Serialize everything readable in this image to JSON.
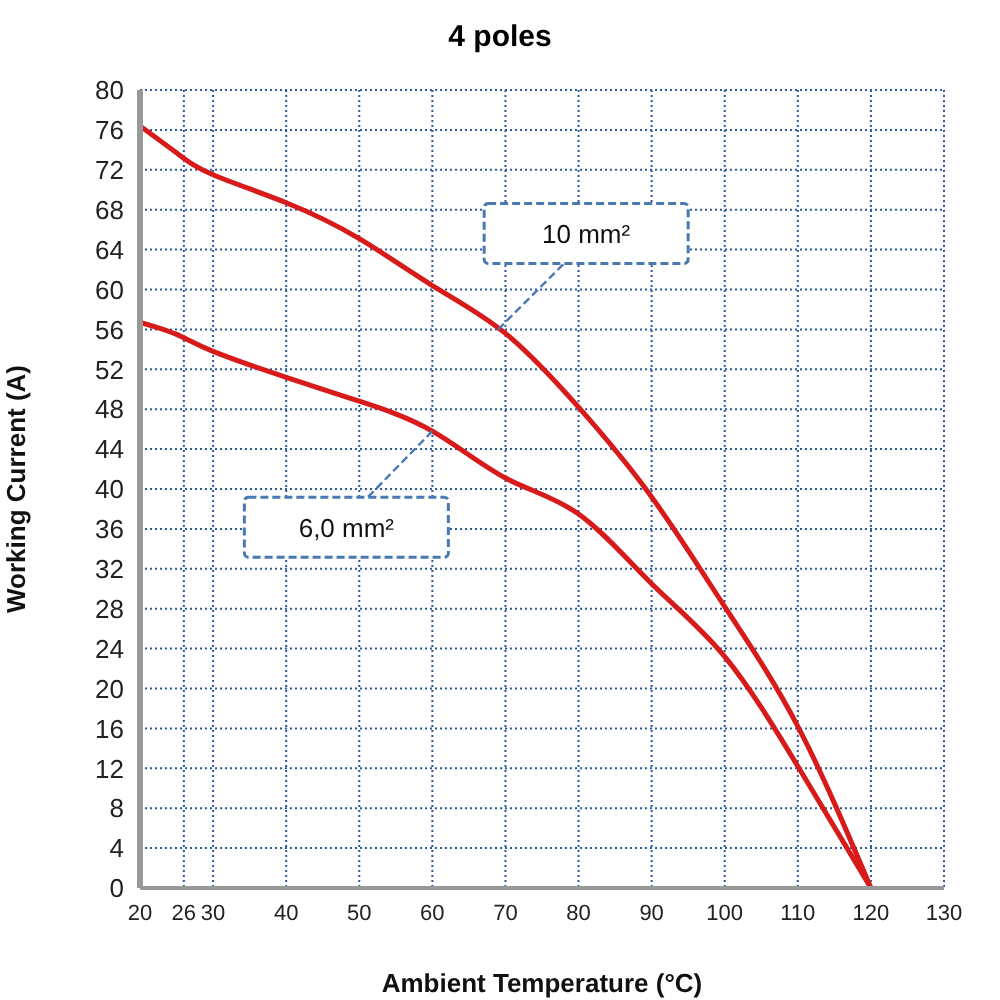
{
  "chart_data": {
    "type": "line",
    "title": "4 poles",
    "xlabel": "Ambient Temperature (°C)",
    "ylabel": "Working Current (A)",
    "x": [
      20,
      25,
      30,
      40,
      50,
      60,
      70,
      80,
      90,
      100,
      110,
      120
    ],
    "series": [
      {
        "color": "#d71a1a",
        "values": [
          76.4,
          73.7,
          71.5,
          68.7,
          65.1,
          60.4,
          55.6,
          48.2,
          39.2,
          28.2,
          16.2,
          0
        ]
      },
      {
        "color": "#d71a1a",
        "values": [
          56.7,
          55.5,
          53.8,
          51.2,
          48.8,
          45.8,
          41.1,
          37.5,
          30.5,
          23.2,
          12.2,
          0
        ]
      }
    ],
    "xlim": [
      20,
      130
    ],
    "xticks": [
      20,
      26,
      30,
      40,
      50,
      60,
      70,
      80,
      90,
      100,
      110,
      120,
      130
    ],
    "ylim": [
      0,
      80
    ],
    "yticks": [
      0,
      4,
      8,
      12,
      16,
      20,
      24,
      28,
      32,
      36,
      40,
      44,
      48,
      52,
      56,
      60,
      64,
      68,
      72,
      76,
      80
    ],
    "grid": true,
    "line_style": "solid",
    "annotations": [
      {
        "text": "10 mm²",
        "x": 69,
        "y": 56
      },
      {
        "text": "6,0 mm²",
        "x": 60,
        "y": 45.8
      }
    ]
  }
}
